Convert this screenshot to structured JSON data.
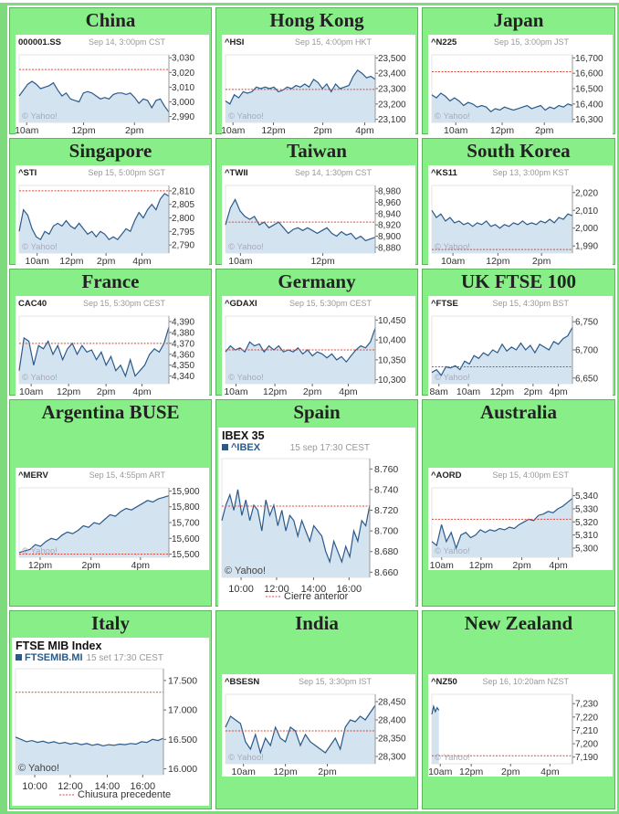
{
  "colors": {
    "cell_bg": "#88ee88",
    "page_bg": "#7ddb7d",
    "area_fill": "#d3e3f0",
    "line": "#2b5a8a",
    "ref_line": "#d94a3a",
    "text": "#222222",
    "sub_text": "#999999"
  },
  "markets": [
    {
      "name": "China",
      "chart_data": {
        "type": "area",
        "symbol": "000001.SS",
        "timestamp": "Sep 14, 3:00pm CST",
        "ylim": [
          2986,
          3032
        ],
        "reference": 3022,
        "yticks": [
          "3,030",
          "3,020",
          "3,010",
          "3,000",
          "2,990"
        ],
        "ytick_values": [
          3030,
          3020,
          3010,
          3000,
          2990
        ],
        "xticks": [
          "10am",
          "12pm",
          "2pm"
        ],
        "xtick_pos": [
          0.05,
          0.43,
          0.77
        ],
        "watermark": "© Yahoo!",
        "values": [
          3004,
          3008,
          3012,
          3014,
          3012,
          3009,
          3010,
          3011,
          3013,
          3008,
          3004,
          3006,
          3002,
          3001,
          3000,
          3006,
          3007,
          3006,
          3004,
          3002,
          3003,
          3002,
          3005,
          3006,
          3006,
          3005,
          3006,
          3003,
          2999,
          3002,
          3001,
          2996,
          3001,
          3002,
          2997,
          2993
        ]
      }
    },
    {
      "name": "Hong Kong",
      "chart_data": {
        "type": "area",
        "symbol": "^HSI",
        "timestamp": "Sep 15, 4:00pm HKT",
        "ylim": [
          23080,
          23520
        ],
        "reference": 23295,
        "yticks": [
          "23,500",
          "23,400",
          "23,300",
          "23,200",
          "23,100"
        ],
        "ytick_values": [
          23500,
          23400,
          23300,
          23200,
          23100
        ],
        "xticks": [
          "10am",
          "12pm",
          "2pm",
          "4pm"
        ],
        "xtick_pos": [
          0.05,
          0.32,
          0.65,
          0.93
        ],
        "watermark": "© Yahoo!",
        "values": [
          23220,
          23200,
          23260,
          23240,
          23280,
          23270,
          23280,
          23310,
          23300,
          23310,
          23300,
          23310,
          23280,
          23290,
          23310,
          23300,
          23320,
          23310,
          23330,
          23310,
          23360,
          23340,
          23300,
          23330,
          23280,
          23330,
          23300,
          23310,
          23320,
          23380,
          23420,
          23400,
          23370,
          23380,
          23360
        ]
      }
    },
    {
      "name": "Japan",
      "chart_data": {
        "type": "area",
        "symbol": "^N225",
        "timestamp": "Sep 15, 3:00pm JST",
        "ylim": [
          16280,
          16720
        ],
        "reference": 16610,
        "yticks": [
          "16,700",
          "16,600",
          "16,500",
          "16,400",
          "16,300"
        ],
        "ytick_values": [
          16700,
          16600,
          16500,
          16400,
          16300
        ],
        "xticks": [
          "10am",
          "12pm",
          "2pm"
        ],
        "xtick_pos": [
          0.17,
          0.5,
          0.8
        ],
        "watermark": "© Yahoo!",
        "values": [
          16460,
          16440,
          16470,
          16450,
          16420,
          16440,
          16420,
          16390,
          16410,
          16400,
          16380,
          16390,
          16380,
          16350,
          16370,
          16360,
          16380,
          16370,
          16360,
          16370,
          16380,
          16390,
          16370,
          16380,
          16390,
          16360,
          16380,
          16370,
          16390,
          16380,
          16400,
          16390
        ]
      }
    },
    {
      "name": "Singapore",
      "chart_data": {
        "type": "area",
        "symbol": "^STI",
        "timestamp": "Sep 15, 5:00pm SGT",
        "ylim": [
          2787,
          2812
        ],
        "reference": 2810,
        "yticks": [
          "2,810",
          "2,805",
          "2,800",
          "2,795",
          "2,790"
        ],
        "ytick_values": [
          2810,
          2805,
          2800,
          2795,
          2790
        ],
        "xticks": [
          "10am",
          "12pm",
          "2pm",
          "4pm"
        ],
        "xtick_pos": [
          0.12,
          0.35,
          0.58,
          0.82
        ],
        "watermark": "© Yahoo!",
        "values": [
          2795,
          2803,
          2801,
          2796,
          2793,
          2792,
          2795,
          2794,
          2797,
          2798,
          2797,
          2799,
          2797,
          2796,
          2798,
          2796,
          2794,
          2795,
          2793,
          2795,
          2794,
          2792,
          2793,
          2792,
          2794,
          2796,
          2795,
          2799,
          2802,
          2800,
          2803,
          2805,
          2803,
          2807,
          2809,
          2808
        ]
      }
    },
    {
      "name": "Taiwan",
      "chart_data": {
        "type": "area",
        "symbol": "^TWII",
        "timestamp": "Sep 14, 1:30pm CST",
        "ylim": [
          8870,
          8990
        ],
        "reference": 8925,
        "yticks": [
          "8,980",
          "8,960",
          "8,940",
          "8,920",
          "8,900",
          "8,880"
        ],
        "ytick_values": [
          8980,
          8960,
          8940,
          8920,
          8900,
          8880
        ],
        "xticks": [
          "10am",
          "12pm"
        ],
        "xtick_pos": [
          0.1,
          0.65
        ],
        "watermark": "© Yahoo!",
        "values": [
          8920,
          8950,
          8965,
          8945,
          8935,
          8930,
          8935,
          8920,
          8925,
          8915,
          8920,
          8925,
          8915,
          8905,
          8912,
          8915,
          8910,
          8915,
          8910,
          8905,
          8910,
          8915,
          8905,
          8900,
          8908,
          8902,
          8905,
          8895,
          8900,
          8892,
          8895,
          8898
        ]
      }
    },
    {
      "name": "South Korea",
      "chart_data": {
        "type": "area",
        "symbol": "^KS11",
        "timestamp": "Sep 13, 3:00pm KST",
        "ylim": [
          1986,
          2024
        ],
        "reference": 1988,
        "yticks": [
          "2,020",
          "2,010",
          "2,000",
          "1,990"
        ],
        "ytick_values": [
          2020,
          2010,
          2000,
          1990
        ],
        "xticks": [
          "10am",
          "12pm",
          "2pm"
        ],
        "xtick_pos": [
          0.15,
          0.47,
          0.78
        ],
        "watermark": "© Yahoo!",
        "values": [
          2010,
          2006,
          2008,
          2004,
          2006,
          2003,
          2004,
          2002,
          2003,
          2001,
          2003,
          2002,
          2004,
          2001,
          2002,
          2000,
          2002,
          2001,
          2003,
          2002,
          2004,
          2002,
          2003,
          2002,
          2004,
          2003,
          2005,
          2003,
          2006,
          2005,
          2008,
          2007
        ]
      }
    },
    {
      "name": "France",
      "chart_data": {
        "type": "area",
        "symbol": "CAC40",
        "timestamp": "Sep 15, 5:30pm CEST",
        "ylim": [
          4333,
          4395
        ],
        "reference": 4370,
        "yticks": [
          "4,390",
          "4,380",
          "4,370",
          "4,360",
          "4,350",
          "4,340"
        ],
        "ytick_values": [
          4390,
          4380,
          4370,
          4360,
          4350,
          4340
        ],
        "xticks": [
          "10am",
          "12pm",
          "2pm",
          "4pm"
        ],
        "xtick_pos": [
          0.08,
          0.33,
          0.58,
          0.82
        ],
        "watermark": "© Yahoo!",
        "values": [
          4345,
          4375,
          4372,
          4350,
          4368,
          4365,
          4372,
          4360,
          4368,
          4355,
          4365,
          4370,
          4360,
          4368,
          4362,
          4364,
          4355,
          4362,
          4350,
          4358,
          4345,
          4350,
          4340,
          4355,
          4340,
          4345,
          4350,
          4360,
          4365,
          4362,
          4370,
          4385
        ]
      }
    },
    {
      "name": "Germany",
      "chart_data": {
        "type": "area",
        "symbol": "^GDAXI",
        "timestamp": "Sep 15, 5:30pm CEST",
        "ylim": [
          10290,
          10460
        ],
        "reference": 10375,
        "yticks": [
          "10,450",
          "10,400",
          "10,350",
          "10,300"
        ],
        "ytick_values": [
          10450,
          10400,
          10350,
          10300
        ],
        "xticks": [
          "10am",
          "12pm",
          "2pm",
          "4pm"
        ],
        "xtick_pos": [
          0.07,
          0.33,
          0.58,
          0.82
        ],
        "watermark": "© Yahoo!",
        "values": [
          10370,
          10385,
          10375,
          10380,
          10370,
          10395,
          10385,
          10390,
          10370,
          10385,
          10375,
          10385,
          10370,
          10375,
          10370,
          10380,
          10365,
          10375,
          10360,
          10370,
          10365,
          10355,
          10365,
          10350,
          10358,
          10345,
          10360,
          10375,
          10385,
          10380,
          10395,
          10430
        ]
      }
    },
    {
      "name": "UK FTSE 100",
      "chart_data": {
        "type": "area",
        "symbol": "^FTSE",
        "timestamp": "Sep 15, 4:30pm BST",
        "ylim": [
          6640,
          6760
        ],
        "reference": 6670,
        "yticks": [
          "6,750",
          "6,700",
          "6,650"
        ],
        "ytick_values": [
          6750,
          6700,
          6650
        ],
        "xticks": [
          "8am",
          "10am",
          "12pm",
          "2pm",
          "4pm"
        ],
        "xtick_pos": [
          0.05,
          0.26,
          0.5,
          0.72,
          0.9
        ],
        "watermark": "© Yahoo!",
        "values": [
          6660,
          6665,
          6655,
          6670,
          6668,
          6672,
          6665,
          6680,
          6675,
          6690,
          6685,
          6695,
          6690,
          6700,
          6695,
          6710,
          6698,
          6705,
          6700,
          6712,
          6700,
          6708,
          6695,
          6710,
          6705,
          6700,
          6715,
          6710,
          6720,
          6725,
          6740
        ]
      }
    },
    {
      "name": "Argentina BUSE",
      "chart_data": {
        "type": "area",
        "symbol": "^MERV",
        "timestamp": "Sep 15, 4:55pm ART",
        "ylim": [
          15480,
          15920
        ],
        "reference": 15500,
        "yticks": [
          "15,900",
          "15,800",
          "15,700",
          "15,600",
          "15,500"
        ],
        "ytick_values": [
          15900,
          15800,
          15700,
          15600,
          15500
        ],
        "xticks": [
          "12pm",
          "2pm",
          "4pm"
        ],
        "xtick_pos": [
          0.14,
          0.48,
          0.81
        ],
        "watermark": "© Yahoo!",
        "values": [
          15510,
          15520,
          15530,
          15560,
          15550,
          15580,
          15600,
          15590,
          15620,
          15640,
          15630,
          15650,
          15680,
          15670,
          15700,
          15690,
          15720,
          15750,
          15740,
          15770,
          15790,
          15780,
          15800,
          15820,
          15840,
          15830,
          15850,
          15860,
          15870
        ]
      }
    },
    {
      "name": "Spain",
      "chart_data": {
        "type": "area",
        "title": "IBEX 35",
        "symbol": "^IBEX",
        "timestamp": "15 sep 17:30 CEST",
        "ylim": [
          8655,
          8770
        ],
        "reference": 8724,
        "yticks": [
          "8.760",
          "8.740",
          "8.720",
          "8.700",
          "8.680",
          "8.660"
        ],
        "ytick_values": [
          8760,
          8740,
          8720,
          8700,
          8680,
          8660
        ],
        "xticks": [
          "10:00",
          "12:00",
          "14:00",
          "16:00"
        ],
        "xtick_pos": [
          0.13,
          0.37,
          0.62,
          0.86
        ],
        "watermark": "© Yahoo!",
        "legend": "Cierre anterior",
        "values": [
          8710,
          8725,
          8735,
          8720,
          8740,
          8715,
          8730,
          8710,
          8725,
          8720,
          8700,
          8730,
          8715,
          8725,
          8705,
          8720,
          8700,
          8715,
          8710,
          8695,
          8710,
          8700,
          8690,
          8705,
          8700,
          8695,
          8680,
          8670,
          8690,
          8680,
          8670,
          8685,
          8675,
          8700,
          8690,
          8710,
          8705,
          8725
        ]
      }
    },
    {
      "name": "Australia",
      "chart_data": {
        "type": "area",
        "symbol": "^AORD",
        "timestamp": "Sep 15, 4:00pm EST",
        "ylim": [
          5293,
          5346
        ],
        "reference": 5322,
        "yticks": [
          "5,340",
          "5,330",
          "5,320",
          "5,310",
          "5,300"
        ],
        "ytick_values": [
          5340,
          5330,
          5320,
          5310,
          5300
        ],
        "xticks": [
          "10am",
          "12pm",
          "2pm",
          "4pm"
        ],
        "xtick_pos": [
          0.07,
          0.35,
          0.64,
          0.9
        ],
        "watermark": "© Yahoo!",
        "values": [
          5305,
          5302,
          5318,
          5305,
          5312,
          5300,
          5310,
          5312,
          5308,
          5310,
          5314,
          5312,
          5314,
          5313,
          5315,
          5314,
          5316,
          5315,
          5318,
          5320,
          5322,
          5321,
          5325,
          5326,
          5328,
          5327,
          5330,
          5332,
          5335,
          5338
        ]
      }
    },
    {
      "name": "Italy",
      "chart_data": {
        "type": "area",
        "title": "FTSE MIB Index",
        "symbol": "FTSEMIB.MI",
        "timestamp": "15 set 17:30 CEST",
        "ylim": [
          15900,
          17700
        ],
        "reference": 17300,
        "yticks": [
          "17.500",
          "17.000",
          "16.500",
          "16.000"
        ],
        "ytick_values": [
          17500,
          17000,
          16500,
          16000
        ],
        "xticks": [
          "10:00",
          "12:00",
          "14:00",
          "16:00"
        ],
        "xtick_pos": [
          0.13,
          0.37,
          0.62,
          0.86
        ],
        "watermark": "© Yahoo!",
        "legend": "Chiusura precedente",
        "values": [
          16540,
          16500,
          16460,
          16480,
          16450,
          16470,
          16440,
          16460,
          16430,
          16450,
          16420,
          16440,
          16410,
          16430,
          16400,
          16420,
          16390,
          16410,
          16400,
          16420,
          16410,
          16430,
          16420,
          16460,
          16450,
          16500,
          16480,
          16520
        ]
      }
    },
    {
      "name": "India",
      "chart_data": {
        "type": "area",
        "symbol": "^BSESN",
        "timestamp": "Sep 15, 3:30pm IST",
        "ylim": [
          28280,
          28470
        ],
        "reference": 28370,
        "yticks": [
          "28,450",
          "28,400",
          "28,350",
          "28,300"
        ],
        "ytick_values": [
          28450,
          28400,
          28350,
          28300
        ],
        "xticks": [
          "10am",
          "12pm",
          "2pm"
        ],
        "xtick_pos": [
          0.12,
          0.4,
          0.68
        ],
        "watermark": "© Yahoo!",
        "values": [
          28380,
          28410,
          28400,
          28390,
          28340,
          28320,
          28360,
          28310,
          28350,
          28330,
          28380,
          28350,
          28340,
          28380,
          28370,
          28330,
          28360,
          28340,
          28330,
          28320,
          28310,
          28330,
          28350,
          28320,
          28380,
          28400,
          28395,
          28410,
          28400,
          28420,
          28440
        ]
      }
    },
    {
      "name": "New Zealand",
      "chart_data": {
        "type": "area",
        "symbol": "^NZ50",
        "timestamp": "Sep 16, 10:20am NZST",
        "ylim": [
          7185,
          7237
        ],
        "reference": 7191,
        "yticks": [
          "7,230",
          "7,220",
          "7,210",
          "7,200",
          "7,190"
        ],
        "ytick_values": [
          7230,
          7220,
          7210,
          7200,
          7190
        ],
        "xticks": [
          "10am",
          "12pm",
          "2pm",
          "4pm"
        ],
        "xtick_pos": [
          0.06,
          0.28,
          0.56,
          0.84
        ],
        "watermark": "© Yahoo!",
        "xspan": 0.05,
        "values": [
          7222,
          7228,
          7224,
          7227,
          7225
        ]
      }
    }
  ]
}
